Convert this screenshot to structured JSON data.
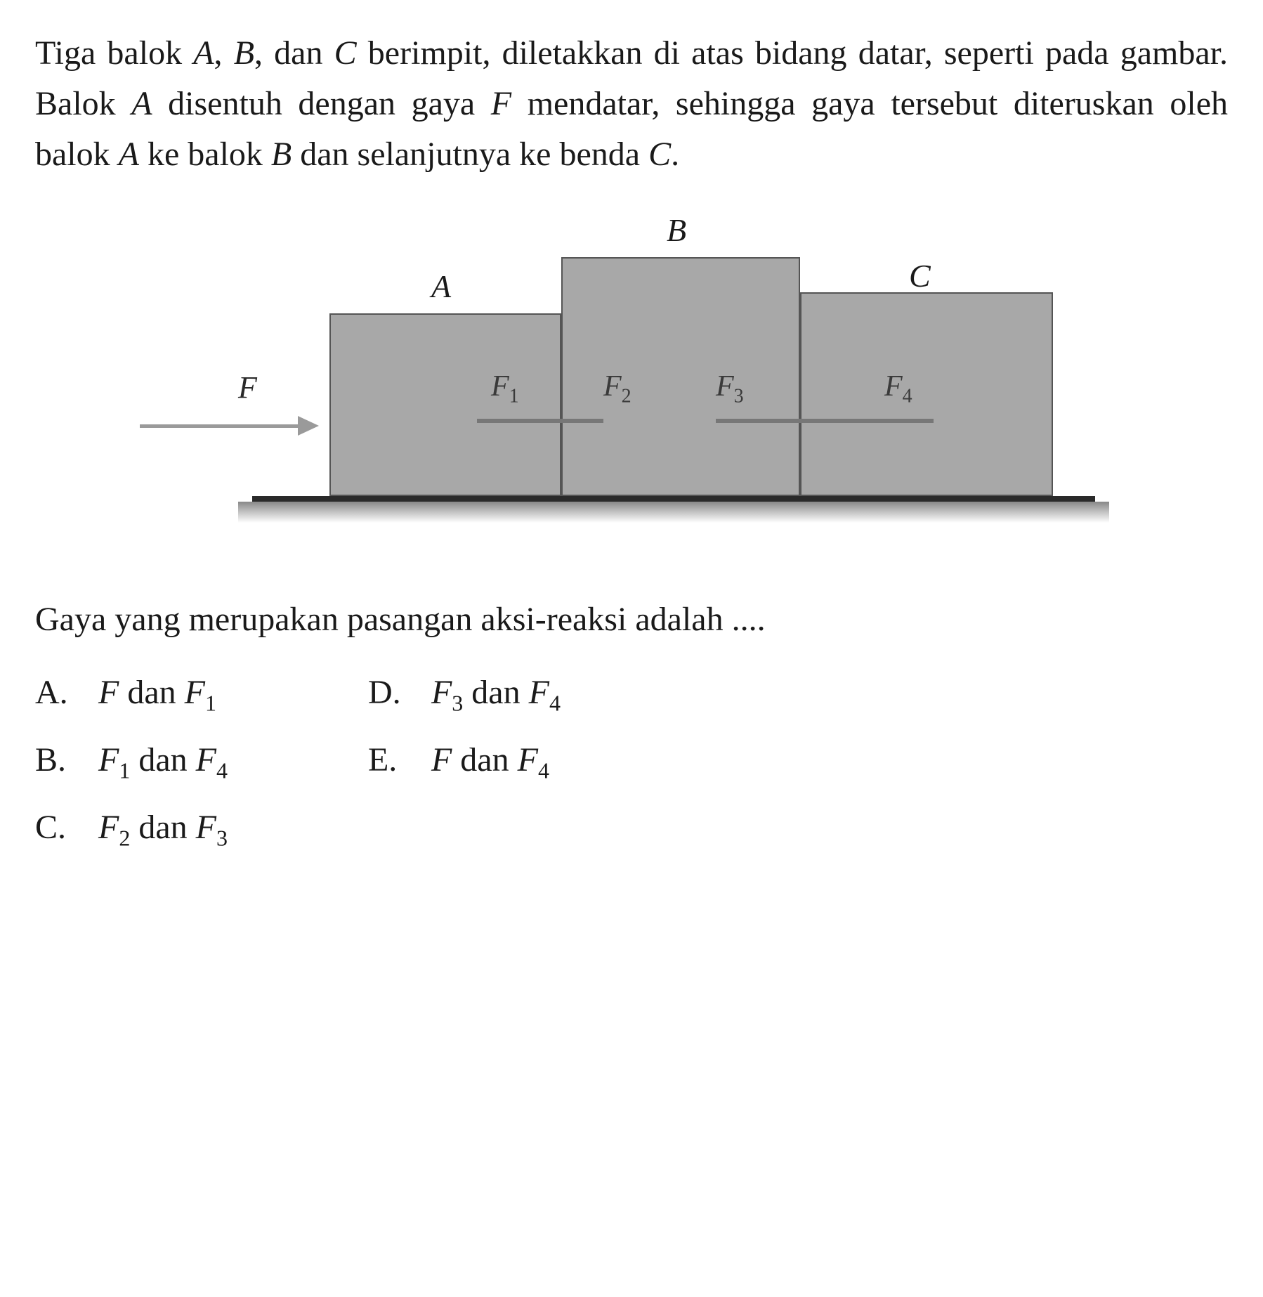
{
  "paragraph": {
    "text_parts": [
      "Tiga balok ",
      "A",
      ", ",
      "B",
      ", dan ",
      "C",
      " berimpit, diletakkan di atas bidang datar, seperti pada gambar. Balok ",
      "A",
      " disentuh dengan gaya ",
      "F",
      " mendatar, sehingga gaya tersebut diteruskan oleh balok ",
      "A",
      " ke balok ",
      "B",
      " dan selanjutnya ke benda ",
      "C",
      "."
    ],
    "italic_indices": [
      1,
      3,
      5,
      7,
      9,
      11,
      13,
      15
    ]
  },
  "diagram": {
    "arrow_label": "F",
    "blocks": {
      "A": {
        "label": "A",
        "color": "#a8a8a8",
        "border": "#555555"
      },
      "B": {
        "label": "B",
        "color": "#a8a8a8",
        "border": "#555555"
      },
      "C": {
        "label": "C",
        "color": "#a8a8a8",
        "border": "#555555"
      }
    },
    "forces": {
      "F1": {
        "base": "F",
        "sub": "1"
      },
      "F2": {
        "base": "F",
        "sub": "2"
      },
      "F3": {
        "base": "F",
        "sub": "3"
      },
      "F4": {
        "base": "F",
        "sub": "4"
      }
    },
    "ground_color": "#2a2a2a",
    "arrow_color": "#9a9a9a"
  },
  "question": "Gaya yang merupakan pasangan aksi-reaksi adalah ....",
  "options": {
    "A": {
      "letter": "A.",
      "pre": "F",
      "mid": " dan ",
      "post": "F",
      "sub_pre": "",
      "sub_post": "1"
    },
    "B": {
      "letter": "B.",
      "pre": "F",
      "mid": " dan ",
      "post": "F",
      "sub_pre": "1",
      "sub_post": "4"
    },
    "C": {
      "letter": "C.",
      "pre": "F",
      "mid": " dan ",
      "post": "F",
      "sub_pre": "2",
      "sub_post": "3"
    },
    "D": {
      "letter": "D.",
      "pre": "F",
      "mid": " dan ",
      "post": "F",
      "sub_pre": "3",
      "sub_post": "4"
    },
    "E": {
      "letter": "E.",
      "pre": "F",
      "mid": " dan ",
      "post": "F",
      "sub_pre": "",
      "sub_post": "4"
    }
  },
  "styling": {
    "body_font": "Georgia, Times New Roman, serif",
    "text_color": "#1a1a1a",
    "background_color": "#ffffff",
    "paragraph_fontsize": 48,
    "option_fontsize": 48,
    "diagram_width": 1400,
    "diagram_height": 500
  }
}
